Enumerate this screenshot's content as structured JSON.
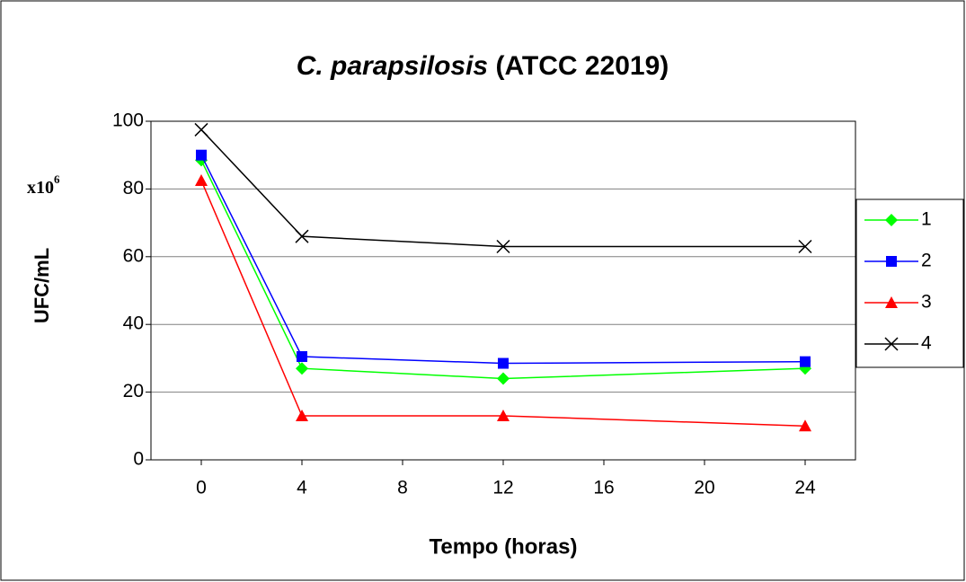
{
  "chart_data": {
    "type": "line",
    "title": "C. parapsilosis",
    "title_suffix": "(ATCC 22019)",
    "x_label": "Tempo (horas)",
    "y_label": "UFC/mL",
    "annotation": {
      "base": "x10",
      "exponent": "6"
    },
    "x": [
      0,
      4,
      12,
      24
    ],
    "xlim": [
      -2,
      26
    ],
    "xticks": [
      0,
      4,
      8,
      12,
      16,
      20,
      24
    ],
    "ylim": [
      0,
      100
    ],
    "yticks": [
      0,
      20,
      40,
      60,
      80,
      100
    ],
    "grid": true,
    "legend": "right",
    "series": [
      {
        "name": "1",
        "color": "#00ff00",
        "marker": "diamond",
        "values": [
          88.5,
          27,
          24,
          27
        ]
      },
      {
        "name": "2",
        "color": "#0000ff",
        "marker": "square",
        "values": [
          90,
          30.5,
          28.5,
          29
        ]
      },
      {
        "name": "3",
        "color": "#ff0000",
        "marker": "triangle",
        "values": [
          82.5,
          13,
          13,
          10
        ]
      },
      {
        "name": "4",
        "color": "#000000",
        "marker": "x",
        "values": [
          97.5,
          66,
          63,
          63
        ]
      }
    ]
  }
}
